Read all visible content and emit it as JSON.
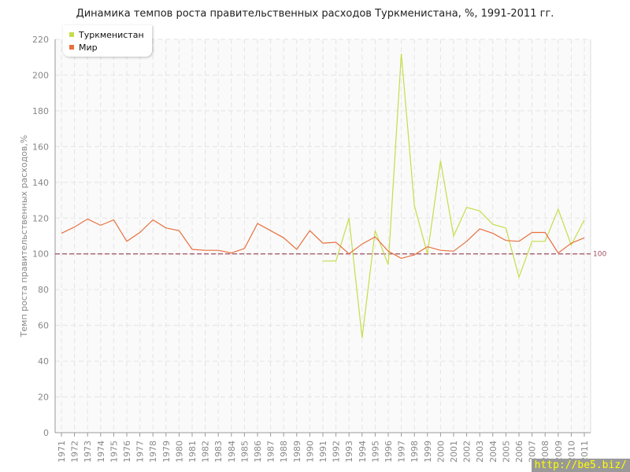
{
  "chart_data": {
    "type": "line",
    "title": "Динамика темпов роста правительственных расходов Туркменистана, %, 1991-2011 гг.",
    "xlabel": "",
    "ylabel": "Темп роста правительственных расходов,%",
    "ylim": [
      0,
      220
    ],
    "yticks": [
      0,
      20,
      40,
      60,
      80,
      100,
      120,
      140,
      160,
      180,
      200,
      220
    ],
    "x": [
      1971,
      1972,
      1973,
      1974,
      1975,
      1976,
      1977,
      1978,
      1979,
      1980,
      1981,
      1982,
      1983,
      1984,
      1985,
      1986,
      1987,
      1988,
      1989,
      1990,
      1991,
      1992,
      1993,
      1994,
      1995,
      1996,
      1997,
      1998,
      1999,
      2000,
      2001,
      2002,
      2003,
      2004,
      2005,
      2006,
      2007,
      2008,
      2009,
      2010,
      2011
    ],
    "grid": true,
    "legend_position": "top-left",
    "reference_line": {
      "value": 100,
      "label": "100",
      "color": "#a05060"
    },
    "series": [
      {
        "name": "Туркменистан",
        "color": "#c5dd4a",
        "values": [
          null,
          null,
          null,
          null,
          null,
          null,
          null,
          null,
          null,
          null,
          null,
          null,
          null,
          null,
          null,
          null,
          null,
          null,
          null,
          null,
          96,
          96,
          120,
          53,
          113,
          94,
          212,
          127,
          100,
          152,
          110,
          126,
          124,
          116.5,
          114.5,
          87,
          107,
          107,
          125,
          105,
          119
        ]
      },
      {
        "name": "Мир",
        "color": "#e8703f",
        "values": [
          111.5,
          115,
          119.5,
          116,
          119,
          107,
          112,
          119,
          114.5,
          113,
          102.5,
          102,
          102,
          100.5,
          103,
          117,
          113,
          109,
          102.5,
          113,
          106,
          106.5,
          100,
          105.5,
          109.5,
          101.5,
          97.5,
          99.5,
          104,
          102,
          101.5,
          107,
          114,
          111.5,
          107.5,
          107,
          112,
          112,
          100.5,
          106,
          109
        ]
      }
    ]
  },
  "watermark": "http://be5.biz/"
}
